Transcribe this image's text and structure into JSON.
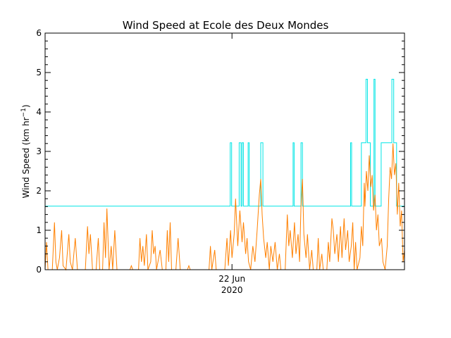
{
  "chart_data": {
    "type": "line",
    "title": "Wind Speed at Ecole des Deux Mondes",
    "ylabel_main": "Wind Speed (km hr",
    "ylabel_sup": "−1",
    "ylabel_close": ")",
    "ylim": [
      0,
      6
    ],
    "yticks": [
      0,
      1,
      2,
      3,
      4,
      5,
      6
    ],
    "xlim": [
      0,
      1
    ],
    "xtick_position": 0.52,
    "xtick_label_day": "22 Jun",
    "xtick_label_year": "2020",
    "grid": false,
    "series": [
      {
        "color": "#00e5e5",
        "style": "step",
        "segments": [
          [
            0.0,
            1.61
          ],
          [
            0.515,
            1.61
          ],
          [
            0.515,
            3.22
          ],
          [
            0.519,
            3.22
          ],
          [
            0.519,
            1.61
          ],
          [
            0.54,
            1.61
          ],
          [
            0.54,
            3.22
          ],
          [
            0.545,
            3.22
          ],
          [
            0.545,
            1.61
          ],
          [
            0.548,
            1.61
          ],
          [
            0.548,
            3.22
          ],
          [
            0.552,
            3.22
          ],
          [
            0.552,
            1.61
          ],
          [
            0.565,
            1.61
          ],
          [
            0.565,
            3.22
          ],
          [
            0.568,
            3.22
          ],
          [
            0.568,
            1.61
          ],
          [
            0.6,
            1.61
          ],
          [
            0.6,
            3.22
          ],
          [
            0.606,
            3.22
          ],
          [
            0.606,
            1.61
          ],
          [
            0.69,
            1.61
          ],
          [
            0.69,
            3.22
          ],
          [
            0.693,
            3.22
          ],
          [
            0.693,
            1.61
          ],
          [
            0.712,
            1.61
          ],
          [
            0.712,
            3.22
          ],
          [
            0.716,
            3.22
          ],
          [
            0.716,
            1.61
          ],
          [
            0.85,
            1.61
          ],
          [
            0.85,
            3.22
          ],
          [
            0.853,
            3.22
          ],
          [
            0.853,
            1.61
          ],
          [
            0.88,
            1.61
          ],
          [
            0.88,
            3.22
          ],
          [
            0.893,
            3.22
          ],
          [
            0.893,
            4.83
          ],
          [
            0.897,
            4.83
          ],
          [
            0.897,
            3.22
          ],
          [
            0.905,
            3.22
          ],
          [
            0.905,
            1.61
          ],
          [
            0.915,
            1.61
          ],
          [
            0.915,
            4.83
          ],
          [
            0.918,
            4.83
          ],
          [
            0.918,
            1.61
          ],
          [
            0.935,
            1.61
          ],
          [
            0.935,
            3.22
          ],
          [
            0.965,
            3.22
          ],
          [
            0.965,
            4.83
          ],
          [
            0.97,
            4.83
          ],
          [
            0.97,
            3.22
          ],
          [
            0.978,
            3.22
          ],
          [
            0.978,
            1.61
          ],
          [
            1.0,
            1.61
          ]
        ]
      },
      {
        "color": "#ff8000",
        "style": "line",
        "points": [
          [
            0.0,
            0.0
          ],
          [
            0.004,
            0.7
          ],
          [
            0.008,
            0.0
          ],
          [
            0.02,
            0.0
          ],
          [
            0.026,
            1.2
          ],
          [
            0.03,
            0.2
          ],
          [
            0.034,
            0.0
          ],
          [
            0.04,
            0.3
          ],
          [
            0.046,
            1.0
          ],
          [
            0.05,
            0.1
          ],
          [
            0.058,
            0.0
          ],
          [
            0.066,
            0.9
          ],
          [
            0.07,
            0.2
          ],
          [
            0.076,
            0.0
          ],
          [
            0.084,
            0.8
          ],
          [
            0.09,
            0.0
          ],
          [
            0.112,
            0.0
          ],
          [
            0.118,
            1.1
          ],
          [
            0.122,
            0.4
          ],
          [
            0.126,
            0.9
          ],
          [
            0.132,
            0.0
          ],
          [
            0.142,
            0.0
          ],
          [
            0.148,
            0.8
          ],
          [
            0.152,
            0.0
          ],
          [
            0.16,
            0.0
          ],
          [
            0.164,
            1.2
          ],
          [
            0.168,
            0.3
          ],
          [
            0.172,
            1.55
          ],
          [
            0.178,
            0.0
          ],
          [
            0.184,
            0.6
          ],
          [
            0.188,
            0.0
          ],
          [
            0.194,
            1.0
          ],
          [
            0.2,
            0.0
          ],
          [
            0.236,
            0.0
          ],
          [
            0.24,
            0.1
          ],
          [
            0.244,
            0.0
          ],
          [
            0.26,
            0.0
          ],
          [
            0.264,
            0.8
          ],
          [
            0.268,
            0.2
          ],
          [
            0.272,
            0.6
          ],
          [
            0.276,
            0.1
          ],
          [
            0.282,
            0.9
          ],
          [
            0.286,
            0.0
          ],
          [
            0.294,
            0.2
          ],
          [
            0.298,
            1.0
          ],
          [
            0.302,
            0.4
          ],
          [
            0.306,
            0.6
          ],
          [
            0.31,
            0.0
          ],
          [
            0.316,
            0.3
          ],
          [
            0.32,
            0.5
          ],
          [
            0.326,
            0.0
          ],
          [
            0.336,
            0.0
          ],
          [
            0.34,
            1.0
          ],
          [
            0.344,
            0.2
          ],
          [
            0.348,
            1.2
          ],
          [
            0.352,
            0.0
          ],
          [
            0.364,
            0.0
          ],
          [
            0.37,
            0.8
          ],
          [
            0.376,
            0.0
          ],
          [
            0.396,
            0.0
          ],
          [
            0.4,
            0.1
          ],
          [
            0.404,
            0.0
          ],
          [
            0.456,
            0.0
          ],
          [
            0.46,
            0.6
          ],
          [
            0.464,
            0.0
          ],
          [
            0.472,
            0.5
          ],
          [
            0.476,
            0.0
          ],
          [
            0.5,
            0.0
          ],
          [
            0.506,
            0.8
          ],
          [
            0.51,
            0.1
          ],
          [
            0.516,
            1.0
          ],
          [
            0.52,
            0.3
          ],
          [
            0.526,
            0.9
          ],
          [
            0.53,
            1.8
          ],
          [
            0.536,
            0.6
          ],
          [
            0.542,
            1.5
          ],
          [
            0.548,
            0.7
          ],
          [
            0.552,
            1.2
          ],
          [
            0.558,
            0.4
          ],
          [
            0.562,
            0.8
          ],
          [
            0.566,
            0.2
          ],
          [
            0.572,
            0.0
          ],
          [
            0.578,
            0.6
          ],
          [
            0.584,
            0.2
          ],
          [
            0.59,
            1.0
          ],
          [
            0.596,
            1.9
          ],
          [
            0.6,
            2.3
          ],
          [
            0.604,
            1.4
          ],
          [
            0.608,
            0.8
          ],
          [
            0.614,
            0.3
          ],
          [
            0.618,
            0.7
          ],
          [
            0.624,
            0.0
          ],
          [
            0.628,
            0.6
          ],
          [
            0.634,
            0.2
          ],
          [
            0.64,
            0.7
          ],
          [
            0.646,
            0.0
          ],
          [
            0.652,
            0.4
          ],
          [
            0.656,
            0.0
          ],
          [
            0.668,
            0.0
          ],
          [
            0.674,
            1.4
          ],
          [
            0.678,
            0.6
          ],
          [
            0.682,
            1.0
          ],
          [
            0.688,
            0.3
          ],
          [
            0.694,
            1.2
          ],
          [
            0.698,
            0.4
          ],
          [
            0.704,
            0.9
          ],
          [
            0.708,
            0.2
          ],
          [
            0.712,
            1.6
          ],
          [
            0.716,
            2.3
          ],
          [
            0.72,
            0.9
          ],
          [
            0.726,
            0.3
          ],
          [
            0.73,
            0.9
          ],
          [
            0.736,
            0.0
          ],
          [
            0.742,
            0.5
          ],
          [
            0.746,
            0.0
          ],
          [
            0.756,
            0.0
          ],
          [
            0.76,
            0.8
          ],
          [
            0.764,
            0.0
          ],
          [
            0.77,
            0.4
          ],
          [
            0.774,
            0.0
          ],
          [
            0.784,
            0.0
          ],
          [
            0.788,
            0.7
          ],
          [
            0.792,
            0.2
          ],
          [
            0.798,
            1.3
          ],
          [
            0.802,
            1.0
          ],
          [
            0.806,
            0.4
          ],
          [
            0.812,
            0.9
          ],
          [
            0.816,
            0.2
          ],
          [
            0.822,
            1.1
          ],
          [
            0.826,
            0.3
          ],
          [
            0.832,
            1.3
          ],
          [
            0.836,
            0.5
          ],
          [
            0.842,
            1.0
          ],
          [
            0.846,
            0.2
          ],
          [
            0.852,
            0.6
          ],
          [
            0.856,
            1.2
          ],
          [
            0.86,
            0.0
          ],
          [
            0.864,
            0.7
          ],
          [
            0.868,
            0.0
          ],
          [
            0.876,
            0.3
          ],
          [
            0.88,
            1.1
          ],
          [
            0.884,
            0.6
          ],
          [
            0.888,
            2.2
          ],
          [
            0.89,
            1.6
          ],
          [
            0.894,
            2.5
          ],
          [
            0.898,
            2.0
          ],
          [
            0.902,
            2.9
          ],
          [
            0.906,
            2.1
          ],
          [
            0.91,
            2.4
          ],
          [
            0.914,
            1.5
          ],
          [
            0.918,
            1.9
          ],
          [
            0.922,
            1.0
          ],
          [
            0.926,
            1.4
          ],
          [
            0.93,
            0.6
          ],
          [
            0.936,
            0.8
          ],
          [
            0.94,
            0.2
          ],
          [
            0.946,
            0.0
          ],
          [
            0.952,
            0.6
          ],
          [
            0.956,
            1.8
          ],
          [
            0.96,
            2.6
          ],
          [
            0.964,
            2.3
          ],
          [
            0.968,
            3.2
          ],
          [
            0.972,
            2.4
          ],
          [
            0.976,
            2.7
          ],
          [
            0.98,
            1.4
          ],
          [
            0.984,
            2.2
          ],
          [
            0.988,
            1.1
          ],
          [
            0.992,
            1.5
          ],
          [
            0.996,
            0.2
          ],
          [
            1.0,
            0.5
          ]
        ]
      }
    ]
  }
}
